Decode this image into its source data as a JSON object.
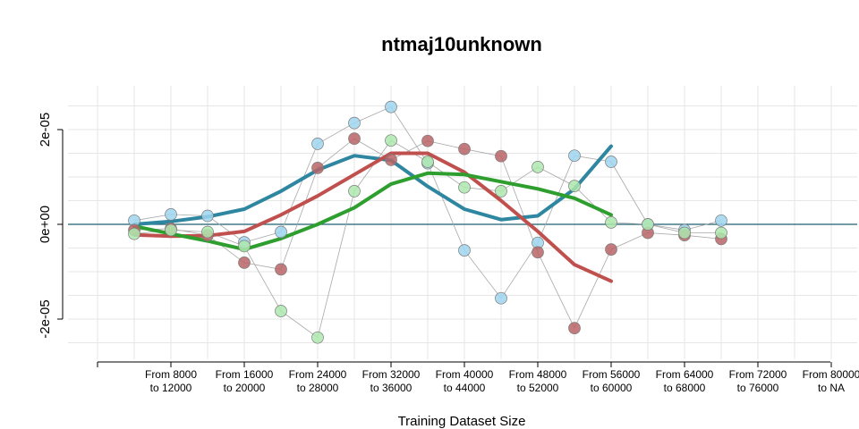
{
  "chart_data": {
    "type": "line",
    "title": "ntmaj10unknown",
    "xlabel": "Training Dataset Size",
    "ylabel": "",
    "categories": [
      "From 8000 to 12000",
      "From 16000 to 20000",
      "From 24000 to 28000",
      "From 32000 to 36000",
      "From 40000 to 44000",
      "From 48000 to 52000",
      "From 56000 to 60000",
      "From 64000 to 68000",
      "From 72000 to 76000",
      "From 80000 to NA"
    ],
    "category_lines": [
      [
        "From 8000",
        "to 12000"
      ],
      [
        "From 16000",
        "to 20000"
      ],
      [
        "From 24000",
        "to 28000"
      ],
      [
        "From 32000",
        "to 36000"
      ],
      [
        "From 40000",
        "to 44000"
      ],
      [
        "From 48000",
        "to 52000"
      ],
      [
        "From 56000",
        "to 60000"
      ],
      [
        "From 64000",
        "to 68000"
      ],
      [
        "From 72000",
        "to 76000"
      ],
      [
        "From 80000",
        "to NA"
      ]
    ],
    "y_ticks": [
      {
        "value": -2e-05,
        "label": "-2e-05"
      },
      {
        "value": 0,
        "label": "0e+00"
      },
      {
        "value": 2e-05,
        "label": "2e-05"
      }
    ],
    "xlim": [
      4000,
      84000
    ],
    "ylim": [
      -2.8e-05,
      2.9e-05
    ],
    "grid": true,
    "reference_line": {
      "y": 0,
      "color": "#1f5f6f"
    },
    "point_series": [
      {
        "color": "#9fd5ee",
        "points": [
          [
            8000,
            8e-07
          ],
          [
            12000,
            2.1e-06
          ],
          [
            16000,
            1.8e-06
          ],
          [
            20000,
            -3.8e-06
          ],
          [
            24000,
            -1.6e-06
          ],
          [
            28000,
            1.7e-05
          ],
          [
            32000,
            2.14e-05
          ],
          [
            36000,
            2.48e-05
          ],
          [
            40000,
            1.29e-05
          ],
          [
            44000,
            -5.5e-06
          ],
          [
            48000,
            -1.56e-05
          ],
          [
            52000,
            -3.9e-06
          ],
          [
            56000,
            1.45e-05
          ],
          [
            60000,
            1.32e-05
          ],
          [
            64000,
            0
          ],
          [
            68000,
            -1.2e-06
          ],
          [
            72000,
            8e-07
          ]
        ]
      },
      {
        "color": "#b86466",
        "points": [
          [
            8000,
            -1.2e-06
          ],
          [
            12000,
            -9e-07
          ],
          [
            16000,
            -2.3e-06
          ],
          [
            20000,
            -8.1e-06
          ],
          [
            24000,
            -9.5e-06
          ],
          [
            28000,
            1.19e-05
          ],
          [
            32000,
            1.81e-05
          ],
          [
            36000,
            1.36e-05
          ],
          [
            40000,
            1.76e-05
          ],
          [
            44000,
            1.59e-05
          ],
          [
            48000,
            1.44e-05
          ],
          [
            52000,
            -5.9e-06
          ],
          [
            56000,
            -2.19e-05
          ],
          [
            60000,
            -5.3e-06
          ],
          [
            64000,
            -1.8e-06
          ],
          [
            68000,
            -2.3e-06
          ],
          [
            72000,
            -3.1e-06
          ]
        ]
      },
      {
        "color": "#aee8ae",
        "points": [
          [
            8000,
            -2e-06
          ],
          [
            12000,
            -1.2e-06
          ],
          [
            16000,
            -1.6e-06
          ],
          [
            20000,
            -4.6e-06
          ],
          [
            24000,
            -1.83e-05
          ],
          [
            28000,
            -2.39e-05
          ],
          [
            32000,
            7e-06
          ],
          [
            36000,
            1.77e-05
          ],
          [
            40000,
            1.32e-05
          ],
          [
            44000,
            7.8e-06
          ],
          [
            48000,
            7e-06
          ],
          [
            52000,
            1.21e-05
          ],
          [
            56000,
            8.1e-06
          ],
          [
            60000,
            4e-07
          ],
          [
            64000,
            0
          ],
          [
            68000,
            -1.8e-06
          ],
          [
            72000,
            -1.8e-06
          ]
        ]
      }
    ],
    "smooth_series": [
      {
        "color": "#2e86a0",
        "points": [
          [
            8000,
            0
          ],
          [
            12000,
            6e-07
          ],
          [
            16000,
            1.6e-06
          ],
          [
            20000,
            3.2e-06
          ],
          [
            24000,
            7e-06
          ],
          [
            28000,
            1.15e-05
          ],
          [
            32000,
            1.45e-05
          ],
          [
            36000,
            1.35e-05
          ],
          [
            40000,
            8e-06
          ],
          [
            44000,
            3.2e-06
          ],
          [
            48000,
            1e-06
          ],
          [
            52000,
            1.8e-06
          ],
          [
            56000,
            7.5e-06
          ],
          [
            60000,
            1.65e-05
          ]
        ]
      },
      {
        "color": "#c0504d",
        "points": [
          [
            8000,
            -2.2e-06
          ],
          [
            12000,
            -2.5e-06
          ],
          [
            16000,
            -2.4e-06
          ],
          [
            20000,
            -1.5e-06
          ],
          [
            24000,
            2e-06
          ],
          [
            28000,
            6e-06
          ],
          [
            32000,
            1.05e-05
          ],
          [
            36000,
            1.5e-05
          ],
          [
            40000,
            1.5e-05
          ],
          [
            44000,
            1.1e-05
          ],
          [
            48000,
            5e-06
          ],
          [
            52000,
            -1.5e-06
          ],
          [
            56000,
            -8.5e-06
          ],
          [
            60000,
            -1.2e-05
          ]
        ]
      },
      {
        "color": "#2e9e2e",
        "points": [
          [
            8000,
            -4e-07
          ],
          [
            12000,
            -2e-06
          ],
          [
            16000,
            -3.5e-06
          ],
          [
            20000,
            -5.3e-06
          ],
          [
            24000,
            -3e-06
          ],
          [
            28000,
            0
          ],
          [
            32000,
            3.5e-06
          ],
          [
            36000,
            8.5e-06
          ],
          [
            40000,
            1.08e-05
          ],
          [
            44000,
            1.05e-05
          ],
          [
            48000,
            9e-06
          ],
          [
            52000,
            7.5e-06
          ],
          [
            56000,
            5.5e-06
          ],
          [
            60000,
            2e-06
          ]
        ]
      }
    ]
  }
}
